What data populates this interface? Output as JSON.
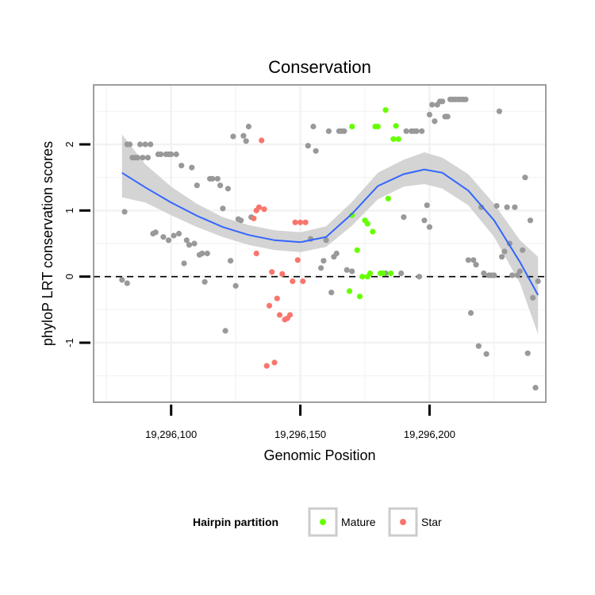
{
  "chart_data": {
    "type": "scatter",
    "title": "Conservation",
    "xlabel": "Genomic Position",
    "ylabel": "phyloP LRT conservation scores",
    "xlim": [
      19296070,
      19296245
    ],
    "ylim": [
      -1.9,
      2.9
    ],
    "x_ticks": [
      {
        "value": 19296100,
        "label": "19,296,100"
      },
      {
        "value": 19296150,
        "label": "19,296,150"
      },
      {
        "value": 19296200,
        "label": "19,296,200"
      }
    ],
    "y_ticks": [
      {
        "value": -1,
        "label": "-1"
      },
      {
        "value": 0,
        "label": "0"
      },
      {
        "value": 1,
        "label": "1"
      },
      {
        "value": 2,
        "label": "2"
      }
    ],
    "reference_line": {
      "y": 0,
      "style": "dashed"
    },
    "grid": true,
    "legend": {
      "title": "Hairpin partition",
      "position": "bottom",
      "entries": [
        {
          "name": "Mature",
          "color": "#66ff00"
        },
        {
          "name": "Star",
          "color": "#f8766d"
        }
      ]
    },
    "colors": {
      "other": "#999999",
      "Mature": "#66ff00",
      "Star": "#f8766d",
      "smooth": "#3366ff",
      "ribbon": "#cccccc"
    },
    "series": [
      {
        "name": "Other",
        "color": "#999999",
        "points": [
          [
            19296081,
            -0.05
          ],
          [
            19296082,
            0.98
          ],
          [
            19296083,
            -0.1
          ],
          [
            19296083,
            2.0
          ],
          [
            19296084,
            2.0
          ],
          [
            19296085,
            1.8
          ],
          [
            19296086,
            1.8
          ],
          [
            19296087,
            1.8
          ],
          [
            19296088,
            2.0
          ],
          [
            19296089,
            1.8
          ],
          [
            19296090,
            2.0
          ],
          [
            19296091,
            1.8
          ],
          [
            19296092,
            2.0
          ],
          [
            19296093,
            0.65
          ],
          [
            19296094,
            0.67
          ],
          [
            19296095,
            1.85
          ],
          [
            19296096,
            1.85
          ],
          [
            19296097,
            0.6
          ],
          [
            19296098,
            1.85
          ],
          [
            19296099,
            0.55
          ],
          [
            19296099,
            1.85
          ],
          [
            19296100,
            1.85
          ],
          [
            19296101,
            0.62
          ],
          [
            19296102,
            1.85
          ],
          [
            19296103,
            0.65
          ],
          [
            19296104,
            1.68
          ],
          [
            19296105,
            0.2
          ],
          [
            19296106,
            0.55
          ],
          [
            19296107,
            0.48
          ],
          [
            19296108,
            1.65
          ],
          [
            19296109,
            0.5
          ],
          [
            19296110,
            1.38
          ],
          [
            19296111,
            0.33
          ],
          [
            19296112,
            0.35
          ],
          [
            19296113,
            -0.08
          ],
          [
            19296114,
            0.35
          ],
          [
            19296115,
            1.48
          ],
          [
            19296116,
            1.48
          ],
          [
            19296118,
            1.48
          ],
          [
            19296119,
            1.38
          ],
          [
            19296120,
            1.03
          ],
          [
            19296121,
            -0.82
          ],
          [
            19296122,
            1.33
          ],
          [
            19296123,
            0.24
          ],
          [
            19296124,
            2.12
          ],
          [
            19296125,
            -0.14
          ],
          [
            19296126,
            0.87
          ],
          [
            19296127,
            0.85
          ],
          [
            19296128,
            2.13
          ],
          [
            19296129,
            2.05
          ],
          [
            19296130,
            2.27
          ],
          [
            19296131,
            0.9
          ],
          [
            19296153,
            1.98
          ],
          [
            19296154,
            0.57
          ],
          [
            19296155,
            2.27
          ],
          [
            19296156,
            1.9
          ],
          [
            19296158,
            0.13
          ],
          [
            19296159,
            0.24
          ],
          [
            19296160,
            0.55
          ],
          [
            19296161,
            2.2
          ],
          [
            19296162,
            -0.24
          ],
          [
            19296163,
            0.3
          ],
          [
            19296164,
            0.35
          ],
          [
            19296165,
            2.2
          ],
          [
            19296166,
            2.2
          ],
          [
            19296167,
            2.2
          ],
          [
            19296168,
            0.1
          ],
          [
            19296170,
            0.08
          ],
          [
            19296183,
            0.05
          ],
          [
            19296189,
            0.05
          ],
          [
            19296190,
            0.9
          ],
          [
            19296191,
            2.2
          ],
          [
            19296193,
            2.2
          ],
          [
            19296194,
            2.2
          ],
          [
            19296195,
            2.2
          ],
          [
            19296196,
            0.0
          ],
          [
            19296197,
            2.2
          ],
          [
            19296198,
            0.85
          ],
          [
            19296199,
            1.08
          ],
          [
            19296200,
            0.75
          ],
          [
            19296200,
            2.45
          ],
          [
            19296201,
            2.6
          ],
          [
            19296202,
            2.35
          ],
          [
            19296203,
            2.6
          ],
          [
            19296204,
            2.65
          ],
          [
            19296205,
            2.65
          ],
          [
            19296206,
            2.42
          ],
          [
            19296207,
            2.42
          ],
          [
            19296208,
            2.68
          ],
          [
            19296209,
            2.68
          ],
          [
            19296210,
            2.68
          ],
          [
            19296211,
            2.68
          ],
          [
            19296212,
            2.68
          ],
          [
            19296213,
            2.68
          ],
          [
            19296214,
            2.68
          ],
          [
            19296215,
            0.25
          ],
          [
            19296216,
            -0.55
          ],
          [
            19296217,
            0.25
          ],
          [
            19296218,
            0.18
          ],
          [
            19296219,
            -1.05
          ],
          [
            19296220,
            1.05
          ],
          [
            19296221,
            0.05
          ],
          [
            19296222,
            -1.17
          ],
          [
            19296223,
            0.02
          ],
          [
            19296224,
            0.02
          ],
          [
            19296225,
            0.02
          ],
          [
            19296226,
            1.07
          ],
          [
            19296227,
            2.5
          ],
          [
            19296228,
            0.3
          ],
          [
            19296229,
            0.38
          ],
          [
            19296230,
            1.05
          ],
          [
            19296231,
            0.5
          ],
          [
            19296232,
            0.02
          ],
          [
            19296233,
            1.05
          ],
          [
            19296234,
            0.02
          ],
          [
            19296235,
            0.08
          ],
          [
            19296236,
            0.4
          ],
          [
            19296237,
            1.5
          ],
          [
            19296238,
            -1.16
          ],
          [
            19296239,
            0.85
          ],
          [
            19296240,
            -0.32
          ],
          [
            19296241,
            -1.68
          ],
          [
            19296242,
            -0.07
          ]
        ]
      },
      {
        "name": "Mature",
        "color": "#66ff00",
        "points": [
          [
            19296169,
            -0.22
          ],
          [
            19296170,
            2.27
          ],
          [
            19296170,
            0.93
          ],
          [
            19296172,
            0.4
          ],
          [
            19296173,
            -0.3
          ],
          [
            19296174,
            0.0
          ],
          [
            19296175,
            0.85
          ],
          [
            19296176,
            0.8
          ],
          [
            19296176,
            0.0
          ],
          [
            19296177,
            0.05
          ],
          [
            19296178,
            0.68
          ],
          [
            19296179,
            2.27
          ],
          [
            19296180,
            2.27
          ],
          [
            19296181,
            0.05
          ],
          [
            19296182,
            0.05
          ],
          [
            19296183,
            2.52
          ],
          [
            19296184,
            1.18
          ],
          [
            19296185,
            0.05
          ],
          [
            19296186,
            2.08
          ],
          [
            19296187,
            2.28
          ],
          [
            19296188,
            2.08
          ]
        ]
      },
      {
        "name": "Star",
        "color": "#f8766d",
        "points": [
          [
            19296132,
            0.88
          ],
          [
            19296133,
            0.35
          ],
          [
            19296133,
            1.0
          ],
          [
            19296134,
            1.05
          ],
          [
            19296135,
            2.06
          ],
          [
            19296136,
            1.02
          ],
          [
            19296137,
            -1.35
          ],
          [
            19296138,
            -0.44
          ],
          [
            19296139,
            0.07
          ],
          [
            19296140,
            -1.3
          ],
          [
            19296141,
            -0.33
          ],
          [
            19296142,
            -0.58
          ],
          [
            19296143,
            0.04
          ],
          [
            19296144,
            -0.65
          ],
          [
            19296145,
            -0.63
          ],
          [
            19296146,
            -0.58
          ],
          [
            19296147,
            -0.07
          ],
          [
            19296148,
            0.82
          ],
          [
            19296149,
            0.25
          ],
          [
            19296150,
            0.82
          ],
          [
            19296151,
            -0.07
          ],
          [
            19296152,
            0.82
          ]
        ]
      }
    ],
    "smooth_fit": [
      {
        "x": 19296081,
        "y": 1.57,
        "lo": 1.2,
        "hi": 2.15
      },
      {
        "x": 19296090,
        "y": 1.35,
        "lo": 1.12,
        "hi": 1.7
      },
      {
        "x": 19296100,
        "y": 1.12,
        "lo": 0.93,
        "hi": 1.36
      },
      {
        "x": 19296110,
        "y": 0.92,
        "lo": 0.75,
        "hi": 1.1
      },
      {
        "x": 19296120,
        "y": 0.75,
        "lo": 0.6,
        "hi": 0.9
      },
      {
        "x": 19296130,
        "y": 0.63,
        "lo": 0.48,
        "hi": 0.78
      },
      {
        "x": 19296140,
        "y": 0.55,
        "lo": 0.4,
        "hi": 0.7
      },
      {
        "x": 19296150,
        "y": 0.52,
        "lo": 0.37,
        "hi": 0.67
      },
      {
        "x": 19296160,
        "y": 0.6,
        "lo": 0.45,
        "hi": 0.76
      },
      {
        "x": 19296170,
        "y": 0.95,
        "lo": 0.77,
        "hi": 1.13
      },
      {
        "x": 19296180,
        "y": 1.37,
        "lo": 1.17,
        "hi": 1.57
      },
      {
        "x": 19296190,
        "y": 1.55,
        "lo": 1.36,
        "hi": 1.77
      },
      {
        "x": 19296198,
        "y": 1.62,
        "lo": 1.4,
        "hi": 1.88
      },
      {
        "x": 19296205,
        "y": 1.57,
        "lo": 1.33,
        "hi": 1.8
      },
      {
        "x": 19296215,
        "y": 1.3,
        "lo": 1.08,
        "hi": 1.55
      },
      {
        "x": 19296225,
        "y": 0.85,
        "lo": 0.6,
        "hi": 1.1
      },
      {
        "x": 19296235,
        "y": 0.22,
        "lo": -0.1,
        "hi": 0.55
      },
      {
        "x": 19296242,
        "y": -0.28,
        "lo": -0.87,
        "hi": 0.3
      }
    ]
  }
}
